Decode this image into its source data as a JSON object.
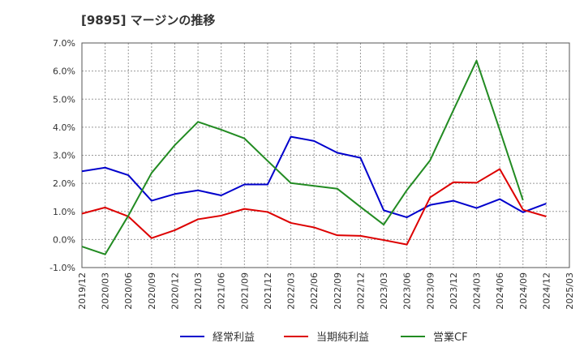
{
  "chart_data": {
    "type": "line",
    "title": "[9895]  マージンの推移",
    "xlabel": "",
    "ylabel": "",
    "ylim": [
      -1.0,
      7.0
    ],
    "yticks": [
      "-1.0%",
      "0.0%",
      "1.0%",
      "2.0%",
      "3.0%",
      "4.0%",
      "5.0%",
      "6.0%",
      "7.0%"
    ],
    "grid": true,
    "legend_position": "bottom",
    "categories": [
      "2019/12",
      "2020/03",
      "2020/06",
      "2020/09",
      "2020/12",
      "2021/03",
      "2021/06",
      "2021/09",
      "2021/12",
      "2022/03",
      "2022/06",
      "2022/09",
      "2022/12",
      "2023/03",
      "2023/06",
      "2023/09",
      "2023/12",
      "2024/03",
      "2024/06",
      "2024/09",
      "2024/12",
      "2025/03"
    ],
    "series": [
      {
        "name": "経常利益",
        "color": "#0000cc",
        "values": [
          2.43,
          2.56,
          2.29,
          1.38,
          1.62,
          1.75,
          1.57,
          1.96,
          1.96,
          3.66,
          3.51,
          3.09,
          2.91,
          1.04,
          0.79,
          1.23,
          1.38,
          1.12,
          1.44,
          0.97,
          1.28,
          null
        ]
      },
      {
        "name": "当期純利益",
        "color": "#dd0000",
        "values": [
          0.92,
          1.14,
          0.82,
          0.05,
          0.33,
          0.72,
          0.85,
          1.09,
          0.98,
          0.59,
          0.43,
          0.15,
          0.13,
          -0.02,
          -0.18,
          1.5,
          2.04,
          2.02,
          2.51,
          1.06,
          0.82,
          null
        ]
      },
      {
        "name": "営業CF",
        "color": "#228b22",
        "values": [
          -0.25,
          -0.53,
          0.85,
          2.37,
          3.36,
          4.19,
          3.91,
          3.6,
          2.8,
          2.01,
          1.91,
          1.81,
          1.16,
          0.53,
          1.76,
          2.82,
          4.6,
          6.37,
          3.9,
          1.4,
          null,
          null
        ]
      }
    ]
  }
}
